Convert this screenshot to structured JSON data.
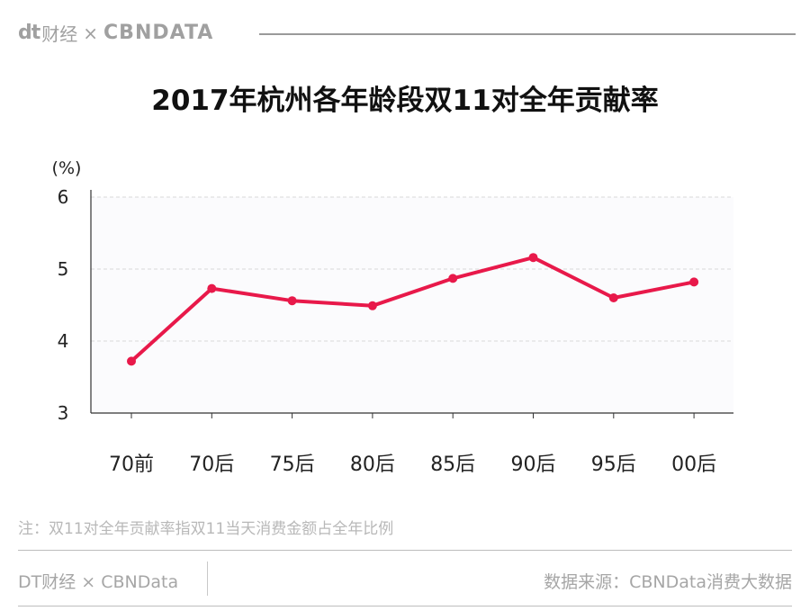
{
  "header": {
    "brand_dt": "dt",
    "brand_caijing": "财经",
    "brand_times": "×",
    "brand_cbn": "CBNDATA"
  },
  "title": "2017年杭州各年龄段双11对全年贡献率",
  "note": "注：双11对全年贡献率指双11当天消费金额占全年比例",
  "footer": {
    "left": "DT财经 × CBNData",
    "right": "数据来源：CBNData消费大数据"
  },
  "colors": {
    "line": "#e8194a",
    "axis": "#333333",
    "grid": "#d9d9d9",
    "plot_bg": "#fbfbfd"
  },
  "chart_data": {
    "type": "line",
    "title": "2017年杭州各年龄段双11对全年贡献率",
    "ylabel": "(%)",
    "xlabel": "",
    "categories": [
      "70前",
      "70后",
      "75后",
      "80后",
      "85后",
      "90后",
      "95后",
      "00后"
    ],
    "values": [
      3.72,
      4.73,
      4.56,
      4.49,
      4.87,
      5.16,
      4.6,
      4.82
    ],
    "ylim": [
      3,
      6
    ],
    "yticks": [
      3,
      4,
      5,
      6
    ],
    "grid": true,
    "legend": "none"
  }
}
